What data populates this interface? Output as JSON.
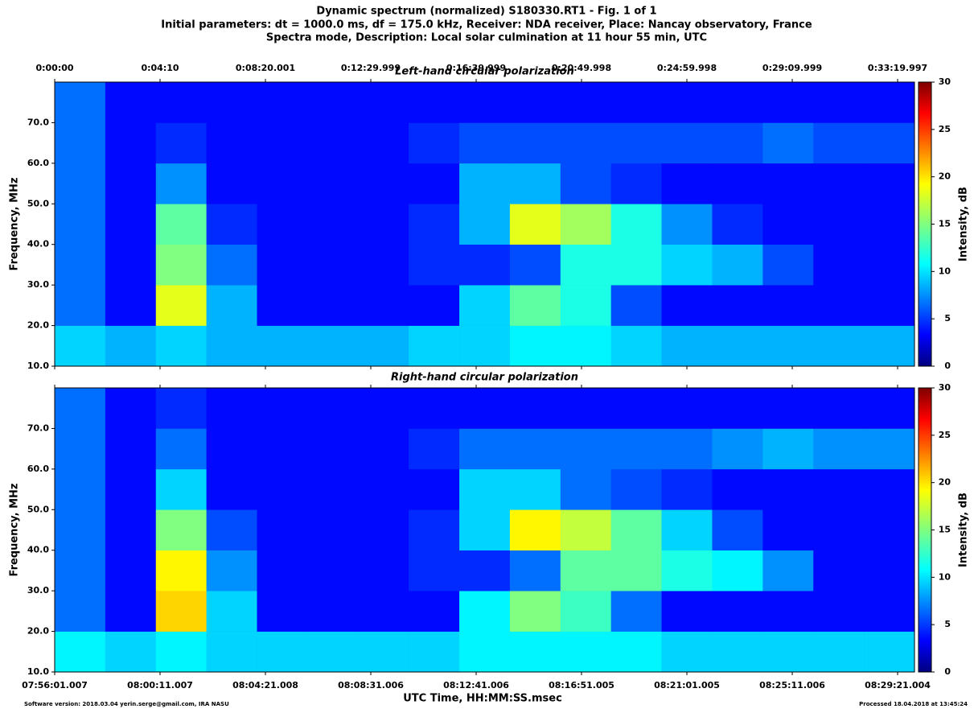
{
  "chart_data": {
    "type": "heatmap",
    "title_lines": [
      "Dynamic spectrum (normalized) S180330.RT1 - Fig. 1 of 1",
      "Initial parameters: dt = 1000.0 ms, df = 175.0 kHz,  Receiver: NDA receiver, Place: Nancay observatory, France",
      "Spectra mode, Description: Local solar culmination at 11 hour 55 min, UTC"
    ],
    "xlabel": "UTC Time, HH:MM:SS.msec",
    "ylabel": "Frequency, MHz",
    "zlabel": "Intensity, dB",
    "footer_left": "Software version: 2018.03.04 yerin.serge@gmail.com, IRA NASU",
    "footer_right": "Processed 18.04.2018 at 13:45:24",
    "xlim": [
      0,
      2040
    ],
    "ylim": [
      10,
      80
    ],
    "zlim": [
      0,
      30
    ],
    "colormap": "jet",
    "xticks_top": [
      {
        "value": 0,
        "label": "0:00:00"
      },
      {
        "value": 250,
        "label": "0:04:10"
      },
      {
        "value": 500,
        "label": "0:08:20.001"
      },
      {
        "value": 750,
        "label": "0:12:29.999"
      },
      {
        "value": 1000,
        "label": "0:16:39.999"
      },
      {
        "value": 1250,
        "label": "0:20:49.998"
      },
      {
        "value": 1500,
        "label": "0:24:59.998"
      },
      {
        "value": 1750,
        "label": "0:29:09.999"
      },
      {
        "value": 2000,
        "label": "0:33:19.997"
      }
    ],
    "xticks": [
      {
        "value": 0,
        "label": "07:56:01.007"
      },
      {
        "value": 250,
        "label": "08:00:11.007"
      },
      {
        "value": 500,
        "label": "08:04:21.008"
      },
      {
        "value": 750,
        "label": "08:08:31.006"
      },
      {
        "value": 1000,
        "label": "08:12:41.006"
      },
      {
        "value": 1250,
        "label": "08:16:51.005"
      },
      {
        "value": 1500,
        "label": "08:21:01.005"
      },
      {
        "value": 1750,
        "label": "08:25:11.006"
      },
      {
        "value": 2000,
        "label": "08:29:21.004"
      }
    ],
    "yticks": [
      {
        "value": 10,
        "label": "10.0"
      },
      {
        "value": 20,
        "label": "20.0"
      },
      {
        "value": 30,
        "label": "30.0"
      },
      {
        "value": 40,
        "label": "40.0"
      },
      {
        "value": 50,
        "label": "50.0"
      },
      {
        "value": 60,
        "label": "60.0"
      },
      {
        "value": 70,
        "label": "70.0"
      }
    ],
    "zticks": [
      0,
      5,
      10,
      15,
      20,
      25,
      30
    ],
    "x_bins": [
      0,
      120,
      240,
      360,
      480,
      600,
      720,
      840,
      960,
      1080,
      1200,
      1320,
      1440,
      1560,
      1680,
      1800,
      1920,
      2040
    ],
    "y_bins": [
      10,
      20,
      30,
      40,
      50,
      60,
      70,
      80
    ],
    "panels": [
      {
        "subtitle": "Left-hand circular polarization",
        "z": [
          [
            10,
            9,
            10,
            9,
            9,
            9,
            9,
            10,
            10,
            11,
            11,
            10,
            9,
            9,
            9,
            9,
            9
          ],
          [
            7,
            4,
            18,
            9,
            4,
            4,
            4,
            4,
            10,
            14,
            12,
            6,
            4,
            4,
            4,
            4,
            4
          ],
          [
            7,
            4,
            15,
            7,
            4,
            4,
            4,
            5,
            5,
            6,
            12,
            12,
            10,
            9,
            6,
            4,
            4
          ],
          [
            7,
            4,
            14,
            5,
            4,
            4,
            4,
            5,
            9,
            18,
            16,
            12,
            8,
            5,
            4,
            4,
            4
          ],
          [
            7,
            4,
            8,
            4,
            4,
            4,
            4,
            4,
            9,
            9,
            6,
            5,
            4,
            4,
            4,
            4,
            4
          ],
          [
            7,
            4,
            5,
            4,
            4,
            4,
            4,
            5,
            6,
            6,
            6,
            6,
            6,
            6,
            7,
            6,
            6
          ],
          [
            7,
            4,
            4,
            4,
            4,
            4,
            4,
            4,
            4,
            4,
            4,
            4,
            4,
            4,
            4,
            4,
            4
          ]
        ]
      },
      {
        "subtitle": "Right-hand circular polarization",
        "z": [
          [
            11,
            10,
            11,
            10,
            10,
            10,
            10,
            10,
            11,
            11,
            11,
            11,
            10,
            10,
            10,
            10,
            10
          ],
          [
            7,
            4,
            20,
            10,
            4,
            4,
            4,
            4,
            11,
            15,
            13,
            7,
            4,
            4,
            4,
            4,
            4
          ],
          [
            7,
            4,
            19,
            8,
            4,
            4,
            4,
            5,
            5,
            7,
            14,
            14,
            12,
            11,
            8,
            4,
            4
          ],
          [
            7,
            4,
            15,
            6,
            4,
            4,
            4,
            5,
            10,
            19,
            17,
            14,
            10,
            6,
            4,
            4,
            4
          ],
          [
            7,
            4,
            10,
            4,
            4,
            4,
            4,
            4,
            10,
            10,
            7,
            6,
            5,
            4,
            4,
            4,
            4
          ],
          [
            7,
            4,
            7,
            4,
            4,
            4,
            4,
            5,
            7,
            7,
            7,
            7,
            7,
            8,
            9,
            8,
            8
          ],
          [
            7,
            4,
            5,
            4,
            4,
            4,
            4,
            4,
            4,
            4,
            4,
            4,
            4,
            4,
            4,
            4,
            4
          ]
        ]
      }
    ]
  }
}
